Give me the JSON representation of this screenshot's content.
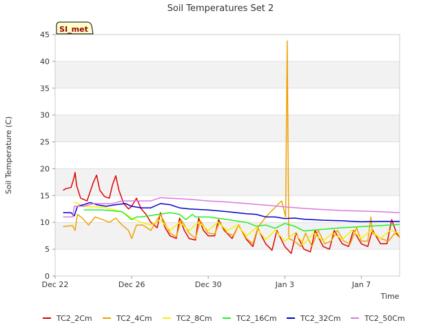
{
  "chart_data": {
    "type": "line",
    "title": "Soil Temperatures Set 2",
    "xlabel": "Time",
    "ylabel": "Soil Temperature (C)",
    "badge": "SI_met",
    "ylim": [
      0,
      45
    ],
    "yticks": [
      0,
      5,
      10,
      15,
      20,
      25,
      30,
      35,
      40,
      45
    ],
    "xlim": [
      "2023-12-22",
      "2024-01-09"
    ],
    "xticks": [
      {
        "date": "2023-12-22",
        "label": "Dec 22"
      },
      {
        "date": "2023-12-26",
        "label": "Dec 26"
      },
      {
        "date": "2023-12-30",
        "label": "Dec 30"
      },
      {
        "date": "2024-01-03",
        "label": "Jan 3"
      },
      {
        "date": "2024-01-07",
        "label": "Jan 7"
      }
    ],
    "grid": "horizontal alternating bands",
    "legend_position": "bottom",
    "series": [
      {
        "name": "TC2_2Cm",
        "color": "#dd0000",
        "points": [
          [
            "2023-12-22T10:00",
            16.0
          ],
          [
            "2023-12-22T14:00",
            16.3
          ],
          [
            "2023-12-22T20:00",
            16.5
          ],
          [
            "2023-12-23T00:00",
            18.5
          ],
          [
            "2023-12-23T01:00",
            19.3
          ],
          [
            "2023-12-23T03:00",
            16.8
          ],
          [
            "2023-12-23T08:00",
            14.5
          ],
          [
            "2023-12-23T16:00",
            14.0
          ],
          [
            "2023-12-24T00:00",
            17.5
          ],
          [
            "2023-12-24T04:00",
            18.8
          ],
          [
            "2023-12-24T08:00",
            16.0
          ],
          [
            "2023-12-24T14:00",
            14.8
          ],
          [
            "2023-12-24T20:00",
            14.5
          ],
          [
            "2023-12-25T00:00",
            17.0
          ],
          [
            "2023-12-25T04:00",
            18.7
          ],
          [
            "2023-12-25T08:00",
            16.0
          ],
          [
            "2023-12-25T14:00",
            13.5
          ],
          [
            "2023-12-25T20:00",
            12.5
          ],
          [
            "2023-12-26T00:00",
            13.0
          ],
          [
            "2023-12-26T06:00",
            14.5
          ],
          [
            "2023-12-26T12:00",
            12.5
          ],
          [
            "2023-12-26T18:00",
            11.5
          ],
          [
            "2023-12-27T00:00",
            10.0
          ],
          [
            "2023-12-27T08:00",
            9.0
          ],
          [
            "2023-12-27T12:00",
            11.8
          ],
          [
            "2023-12-27T18:00",
            9.0
          ],
          [
            "2023-12-28T00:00",
            7.5
          ],
          [
            "2023-12-28T08:00",
            7.0
          ],
          [
            "2023-12-28T12:00",
            10.8
          ],
          [
            "2023-12-28T18:00",
            8.5
          ],
          [
            "2023-12-29T00:00",
            7.0
          ],
          [
            "2023-12-29T08:00",
            6.7
          ],
          [
            "2023-12-29T12:00",
            10.8
          ],
          [
            "2023-12-29T18:00",
            8.5
          ],
          [
            "2023-12-30T00:00",
            7.5
          ],
          [
            "2023-12-30T08:00",
            7.5
          ],
          [
            "2023-12-30T13:00",
            10.5
          ],
          [
            "2023-12-30T20:00",
            8.5
          ],
          [
            "2023-12-31T06:00",
            7.0
          ],
          [
            "2023-12-31T14:00",
            9.5
          ],
          [
            "2024-01-01T00:00",
            6.8
          ],
          [
            "2024-01-01T08:00",
            5.5
          ],
          [
            "2024-01-01T14:00",
            8.9
          ],
          [
            "2024-01-02T00:00",
            6.0
          ],
          [
            "2024-01-02T08:00",
            4.8
          ],
          [
            "2024-01-02T14:00",
            8.5
          ],
          [
            "2024-01-03T00:00",
            5.5
          ],
          [
            "2024-01-03T08:00",
            4.2
          ],
          [
            "2024-01-03T14:00",
            8.0
          ],
          [
            "2024-01-04T00:00",
            5.0
          ],
          [
            "2024-01-04T08:00",
            4.5
          ],
          [
            "2024-01-04T14:00",
            8.5
          ],
          [
            "2024-01-05T00:00",
            5.5
          ],
          [
            "2024-01-05T08:00",
            5.0
          ],
          [
            "2024-01-05T14:00",
            8.5
          ],
          [
            "2024-01-06T00:00",
            6.0
          ],
          [
            "2024-01-06T08:00",
            5.5
          ],
          [
            "2024-01-06T14:00",
            8.5
          ],
          [
            "2024-01-07T00:00",
            6.0
          ],
          [
            "2024-01-07T08:00",
            5.5
          ],
          [
            "2024-01-07T14:00",
            8.6
          ],
          [
            "2024-01-08T00:00",
            6.0
          ],
          [
            "2024-01-08T08:00",
            6.0
          ],
          [
            "2024-01-08T14:00",
            10.5
          ],
          [
            "2024-01-08T20:00",
            8.0
          ],
          [
            "2024-01-09T00:00",
            7.2
          ]
        ]
      },
      {
        "name": "TC2_4Cm",
        "color": "#f0a000",
        "points": [
          [
            "2023-12-22T10:00",
            9.2
          ],
          [
            "2023-12-22T22:00",
            9.4
          ],
          [
            "2023-12-23T01:00",
            8.5
          ],
          [
            "2023-12-23T04:00",
            11.5
          ],
          [
            "2023-12-23T10:00",
            10.8
          ],
          [
            "2023-12-23T18:00",
            9.5
          ],
          [
            "2023-12-24T02:00",
            11.0
          ],
          [
            "2023-12-24T12:00",
            10.5
          ],
          [
            "2023-12-24T20:00",
            10.0
          ],
          [
            "2023-12-25T04:00",
            10.8
          ],
          [
            "2023-12-25T12:00",
            9.5
          ],
          [
            "2023-12-25T20:00",
            8.5
          ],
          [
            "2023-12-26T00:00",
            7.0
          ],
          [
            "2023-12-26T06:00",
            9.5
          ],
          [
            "2023-12-26T14:00",
            9.5
          ],
          [
            "2023-12-27T00:00",
            8.5
          ],
          [
            "2023-12-27T12:00",
            11.5
          ],
          [
            "2023-12-28T00:00",
            8.0
          ],
          [
            "2023-12-28T08:00",
            7.3
          ],
          [
            "2023-12-28T14:00",
            10.5
          ],
          [
            "2023-12-29T00:00",
            8.0
          ],
          [
            "2023-12-29T08:00",
            7.0
          ],
          [
            "2023-12-29T14:00",
            10.3
          ],
          [
            "2023-12-30T00:00",
            8.0
          ],
          [
            "2023-12-30T08:00",
            7.8
          ],
          [
            "2023-12-30T14:00",
            10.0
          ],
          [
            "2023-12-31T00:00",
            8.0
          ],
          [
            "2023-12-31T08:00",
            7.5
          ],
          [
            "2023-12-31T14:00",
            9.5
          ],
          [
            "2024-01-01T00:00",
            7.0
          ],
          [
            "2024-01-01T08:00",
            6.0
          ],
          [
            "2024-01-01T14:00",
            9.0
          ],
          [
            "2024-01-02T00:00",
            11.0
          ],
          [
            "2024-01-02T12:00",
            12.8
          ],
          [
            "2024-01-02T20:00",
            14.0
          ],
          [
            "2024-01-03T01:00",
            11.0
          ],
          [
            "2024-01-03T03:00",
            43.8
          ],
          [
            "2024-01-03T05:00",
            7.0
          ],
          [
            "2024-01-03T12:00",
            6.5
          ],
          [
            "2024-01-03T20:00",
            5.5
          ],
          [
            "2024-01-04T02:00",
            8.0
          ],
          [
            "2024-01-04T10:00",
            5.5
          ],
          [
            "2024-01-04T18:00",
            8.5
          ],
          [
            "2024-01-05T02:00",
            6.0
          ],
          [
            "2024-01-05T10:00",
            6.5
          ],
          [
            "2024-01-05T18:00",
            8.5
          ],
          [
            "2024-01-06T02:00",
            6.5
          ],
          [
            "2024-01-06T10:00",
            6.0
          ],
          [
            "2024-01-06T18:00",
            9.0
          ],
          [
            "2024-01-07T00:00",
            6.5
          ],
          [
            "2024-01-07T08:00",
            6.5
          ],
          [
            "2024-01-07T12:00",
            11.0
          ],
          [
            "2024-01-07T14:00",
            8.0
          ],
          [
            "2024-01-08T00:00",
            7.0
          ],
          [
            "2024-01-08T10:00",
            6.5
          ],
          [
            "2024-01-08T18:00",
            8.0
          ],
          [
            "2024-01-09T00:00",
            7.2
          ]
        ]
      },
      {
        "name": "TC2_8Cm",
        "color": "#f8f000",
        "points": [
          [
            "2023-12-23T00:00",
            13.8
          ],
          [
            "2023-12-23T12:00",
            13.0
          ],
          [
            "2023-12-24T12:00",
            12.8
          ],
          [
            "2023-12-25T12:00",
            12.0
          ],
          [
            "2023-12-26T00:00",
            10.8
          ],
          [
            "2023-12-26T12:00",
            10.0
          ],
          [
            "2023-12-27T00:00",
            9.5
          ],
          [
            "2023-12-27T12:00",
            10.5
          ],
          [
            "2023-12-28T00:00",
            8.5
          ],
          [
            "2023-12-28T12:00",
            10.0
          ],
          [
            "2023-12-29T00:00",
            8.5
          ],
          [
            "2023-12-29T12:00",
            10.0
          ],
          [
            "2023-12-30T00:00",
            8.5
          ],
          [
            "2023-12-30T12:00",
            10.0
          ],
          [
            "2023-12-31T00:00",
            8.5
          ],
          [
            "2023-12-31T12:00",
            9.5
          ],
          [
            "2024-01-01T00:00",
            7.5
          ],
          [
            "2024-01-01T12:00",
            9.0
          ],
          [
            "2024-01-02T00:00",
            6.8
          ],
          [
            "2024-01-02T12:00",
            8.5
          ],
          [
            "2024-01-03T00:00",
            6.5
          ],
          [
            "2024-01-03T12:00",
            8.0
          ],
          [
            "2024-01-04T00:00",
            6.0
          ],
          [
            "2024-01-04T12:00",
            8.0
          ],
          [
            "2024-01-05T00:00",
            6.5
          ],
          [
            "2024-01-05T12:00",
            8.0
          ],
          [
            "2024-01-06T00:00",
            6.8
          ],
          [
            "2024-01-06T12:00",
            8.5
          ],
          [
            "2024-01-07T00:00",
            7.0
          ],
          [
            "2024-01-07T12:00",
            8.5
          ],
          [
            "2024-01-08T00:00",
            7.0
          ],
          [
            "2024-01-08T12:00",
            8.5
          ],
          [
            "2024-01-09T00:00",
            8.0
          ]
        ]
      },
      {
        "name": "TC2_16Cm",
        "color": "#22ee22",
        "points": [
          [
            "2023-12-23T12:00",
            12.3
          ],
          [
            "2023-12-24T12:00",
            12.3
          ],
          [
            "2023-12-25T12:00",
            12.0
          ],
          [
            "2023-12-26T00:00",
            10.5
          ],
          [
            "2023-12-26T06:00",
            11.0
          ],
          [
            "2023-12-26T12:00",
            11.0
          ],
          [
            "2023-12-28T00:00",
            11.8
          ],
          [
            "2023-12-28T12:00",
            11.5
          ],
          [
            "2023-12-28T20:00",
            10.5
          ],
          [
            "2023-12-29T04:00",
            11.5
          ],
          [
            "2023-12-29T08:00",
            11.0
          ],
          [
            "2023-12-30T00:00",
            11.0
          ],
          [
            "2023-12-31T00:00",
            10.5
          ],
          [
            "2024-01-01T00:00",
            10.0
          ],
          [
            "2024-01-01T12:00",
            9.3
          ],
          [
            "2024-01-02T00:00",
            9.5
          ],
          [
            "2024-01-02T12:00",
            8.9
          ],
          [
            "2024-01-03T00:00",
            9.8
          ],
          [
            "2024-01-03T12:00",
            9.3
          ],
          [
            "2024-01-04T00:00",
            8.4
          ],
          [
            "2024-01-05T00:00",
            8.7
          ],
          [
            "2024-01-06T00:00",
            9.0
          ],
          [
            "2024-01-07T00:00",
            9.2
          ],
          [
            "2024-01-08T00:00",
            9.4
          ],
          [
            "2024-01-09T00:00",
            9.6
          ]
        ]
      },
      {
        "name": "TC2_32Cm",
        "color": "#0000cc",
        "points": [
          [
            "2023-12-22T10:00",
            11.8
          ],
          [
            "2023-12-22T20:00",
            11.8
          ],
          [
            "2023-12-23T00:00",
            11.2
          ],
          [
            "2023-12-23T04:00",
            13.0
          ],
          [
            "2023-12-23T12:00",
            13.3
          ],
          [
            "2023-12-23T20:00",
            13.7
          ],
          [
            "2023-12-24T04:00",
            13.3
          ],
          [
            "2023-12-24T16:00",
            13.0
          ],
          [
            "2023-12-25T04:00",
            13.3
          ],
          [
            "2023-12-25T16:00",
            13.5
          ],
          [
            "2023-12-26T00:00",
            13.0
          ],
          [
            "2023-12-26T12:00",
            12.7
          ],
          [
            "2023-12-27T00:00",
            12.7
          ],
          [
            "2023-12-27T12:00",
            13.5
          ],
          [
            "2023-12-28T00:00",
            13.3
          ],
          [
            "2023-12-28T12:00",
            12.7
          ],
          [
            "2023-12-29T00:00",
            12.5
          ],
          [
            "2023-12-30T00:00",
            12.3
          ],
          [
            "2023-12-31T00:00",
            12.0
          ],
          [
            "2024-01-01T00:00",
            11.6
          ],
          [
            "2024-01-01T12:00",
            11.5
          ],
          [
            "2024-01-02T00:00",
            11.0
          ],
          [
            "2024-01-02T12:00",
            11.0
          ],
          [
            "2024-01-03T00:00",
            10.7
          ],
          [
            "2024-01-03T12:00",
            10.8
          ],
          [
            "2024-01-04T00:00",
            10.6
          ],
          [
            "2024-01-05T00:00",
            10.4
          ],
          [
            "2024-01-06T00:00",
            10.3
          ],
          [
            "2024-01-07T00:00",
            10.1
          ],
          [
            "2024-01-08T00:00",
            10.2
          ],
          [
            "2024-01-09T00:00",
            10.2
          ]
        ]
      },
      {
        "name": "TC2_50Cm",
        "color": "#dd77dd",
        "points": [
          [
            "2023-12-22T10:00",
            11.0
          ],
          [
            "2023-12-22T22:00",
            11.0
          ],
          [
            "2023-12-23T00:00",
            13.0
          ],
          [
            "2023-12-23T12:00",
            13.0
          ],
          [
            "2023-12-24T00:00",
            13.5
          ],
          [
            "2023-12-25T00:00",
            13.5
          ],
          [
            "2023-12-25T12:00",
            14.0
          ],
          [
            "2023-12-26T00:00",
            14.0
          ],
          [
            "2023-12-27T00:00",
            14.0
          ],
          [
            "2023-12-27T12:00",
            14.6
          ],
          [
            "2023-12-28T00:00",
            14.5
          ],
          [
            "2023-12-29T00:00",
            14.3
          ],
          [
            "2023-12-30T00:00",
            14.0
          ],
          [
            "2023-12-31T00:00",
            13.8
          ],
          [
            "2024-01-01T00:00",
            13.5
          ],
          [
            "2024-01-02T00:00",
            13.2
          ],
          [
            "2024-01-03T00:00",
            12.9
          ],
          [
            "2024-01-04T00:00",
            12.6
          ],
          [
            "2024-01-05T00:00",
            12.4
          ],
          [
            "2024-01-06T00:00",
            12.2
          ],
          [
            "2024-01-07T00:00",
            12.1
          ],
          [
            "2024-01-08T00:00",
            12.0
          ],
          [
            "2024-01-09T00:00",
            11.8
          ]
        ]
      }
    ]
  }
}
